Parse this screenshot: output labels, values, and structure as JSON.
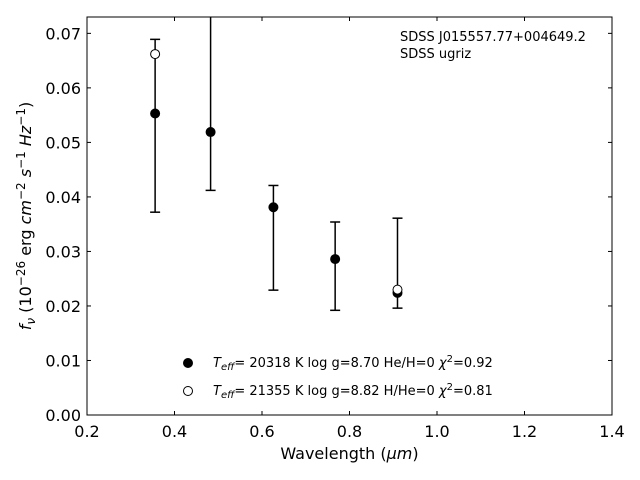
{
  "chart_data": {
    "type": "scatter",
    "xlabel": "Wavelength (μm)",
    "ylabel": "f_ν (10^-26 erg cm^-2 s^-1 Hz^-1)",
    "xlim": [
      0.2,
      1.4
    ],
    "ylim": [
      0.0,
      0.073
    ],
    "x_ticks": [
      "0.2",
      "0.4",
      "0.6",
      "0.8",
      "1.0",
      "1.2",
      "1.4"
    ],
    "y_ticks": [
      "0.00",
      "0.01",
      "0.02",
      "0.03",
      "0.04",
      "0.05",
      "0.06",
      "0.07"
    ],
    "grid": false,
    "annotation": {
      "line1": "SDSS J015557.77+004649.2",
      "line2": "SDSS ugriz"
    },
    "observed": {
      "x": [
        0.3557,
        0.4825,
        0.6261,
        0.7672,
        0.9097
      ],
      "y": [
        0.0553,
        0.0519,
        0.0381,
        0.0286,
        0.0224
      ],
      "err_low": [
        0.0372,
        0.0412,
        0.0229,
        0.0192,
        0.0196
      ],
      "err_high": [
        0.0689,
        0.0735,
        0.0421,
        0.0354,
        0.0361
      ]
    },
    "series": [
      {
        "name": "T_eff= 20318 K  log g=8.70  He/H=0  χ²=0.92",
        "marker": "filled-circle",
        "x": [
          0.3557,
          0.4825,
          0.6261,
          0.7672,
          0.9097
        ],
        "y": [
          0.0553,
          0.0519,
          0.0381,
          0.0286,
          0.0224
        ]
      },
      {
        "name": "T_eff= 21355 K  log g=8.82  H/He=0  χ²=0.81",
        "marker": "open-circle",
        "x": [
          0.3557,
          0.9097
        ],
        "y": [
          0.0662,
          0.023
        ]
      }
    ],
    "legend": {
      "placement": "bottom-center",
      "entries": [
        {
          "main": "T",
          "sub": "eff",
          "rest": "= 20318 K  log g=8.70  He/H=0  χ",
          "sup": "2",
          "tail": "=0.92"
        },
        {
          "main": "T",
          "sub": "eff",
          "rest": "= 21355 K  log g=8.82  H/He=0  χ",
          "sup": "2",
          "tail": "=0.81"
        }
      ]
    }
  }
}
